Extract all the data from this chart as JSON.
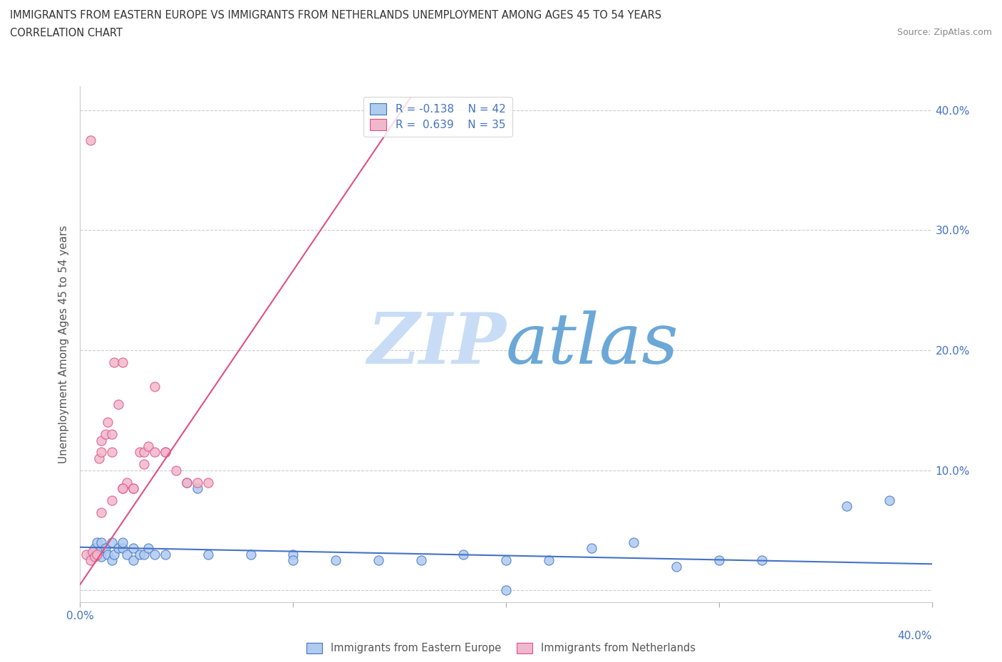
{
  "title_line1": "IMMIGRANTS FROM EASTERN EUROPE VS IMMIGRANTS FROM NETHERLANDS UNEMPLOYMENT AMONG AGES 45 TO 54 YEARS",
  "title_line2": "CORRELATION CHART",
  "source": "Source: ZipAtlas.com",
  "ylabel": "Unemployment Among Ages 45 to 54 years",
  "xlim": [
    0.0,
    0.4
  ],
  "ylim": [
    -0.01,
    0.42
  ],
  "xticks": [
    0.0,
    0.1,
    0.2,
    0.3,
    0.4
  ],
  "yticks": [
    0.0,
    0.1,
    0.2,
    0.3,
    0.4
  ],
  "xticklabels_left": [
    "0.0%",
    "",
    "",
    "",
    ""
  ],
  "xticklabels_right": [
    "",
    "",
    "",
    "",
    "40.0%"
  ],
  "yticklabels_right": [
    "",
    "10.0%",
    "20.0%",
    "30.0%",
    "40.0%"
  ],
  "legend_r1": "R = -0.138",
  "legend_n1": "N = 42",
  "legend_r2": "R =  0.639",
  "legend_n2": "N = 35",
  "color_eastern": "#aecbf0",
  "color_netherlands": "#f0b8cc",
  "line_color_eastern": "#4472c4",
  "line_color_netherlands": "#e05080",
  "watermark_zip": "ZIP",
  "watermark_atlas": "atlas",
  "watermark_color_zip": "#c8ddf5",
  "watermark_color_atlas": "#6ba8d8",
  "background_color": "#ffffff",
  "grid_color": "#cccccc",
  "blue_x": [
    0.005,
    0.007,
    0.008,
    0.009,
    0.01,
    0.01,
    0.012,
    0.013,
    0.015,
    0.015,
    0.016,
    0.018,
    0.02,
    0.02,
    0.022,
    0.025,
    0.025,
    0.028,
    0.03,
    0.032,
    0.035,
    0.04,
    0.05,
    0.055,
    0.06,
    0.08,
    0.1,
    0.12,
    0.14,
    0.16,
    0.18,
    0.2,
    0.22,
    0.24,
    0.26,
    0.28,
    0.3,
    0.32,
    0.36,
    0.38,
    0.2,
    0.1
  ],
  "blue_y": [
    0.03,
    0.035,
    0.04,
    0.032,
    0.028,
    0.04,
    0.035,
    0.03,
    0.025,
    0.04,
    0.03,
    0.035,
    0.035,
    0.04,
    0.03,
    0.025,
    0.035,
    0.03,
    0.03,
    0.035,
    0.03,
    0.03,
    0.09,
    0.085,
    0.03,
    0.03,
    0.03,
    0.025,
    0.025,
    0.025,
    0.03,
    0.025,
    0.025,
    0.035,
    0.04,
    0.02,
    0.025,
    0.025,
    0.07,
    0.075,
    0.0,
    0.025
  ],
  "pink_x": [
    0.003,
    0.005,
    0.006,
    0.007,
    0.008,
    0.009,
    0.01,
    0.01,
    0.012,
    0.013,
    0.015,
    0.015,
    0.016,
    0.018,
    0.02,
    0.02,
    0.022,
    0.025,
    0.028,
    0.03,
    0.032,
    0.035,
    0.04,
    0.045,
    0.05,
    0.055,
    0.06,
    0.01,
    0.015,
    0.02,
    0.025,
    0.03,
    0.035,
    0.04,
    0.005
  ],
  "pink_y": [
    0.03,
    0.025,
    0.032,
    0.028,
    0.03,
    0.11,
    0.115,
    0.125,
    0.13,
    0.14,
    0.115,
    0.13,
    0.19,
    0.155,
    0.085,
    0.19,
    0.09,
    0.085,
    0.115,
    0.115,
    0.12,
    0.17,
    0.115,
    0.1,
    0.09,
    0.09,
    0.09,
    0.065,
    0.075,
    0.085,
    0.085,
    0.105,
    0.115,
    0.115,
    0.375
  ],
  "pink_line_x0": 0.0,
  "pink_line_y0": 0.005,
  "pink_line_x1": 0.155,
  "pink_line_y1": 0.41,
  "blue_line_x0": 0.0,
  "blue_line_y0": 0.036,
  "blue_line_x1": 0.4,
  "blue_line_y1": 0.022
}
